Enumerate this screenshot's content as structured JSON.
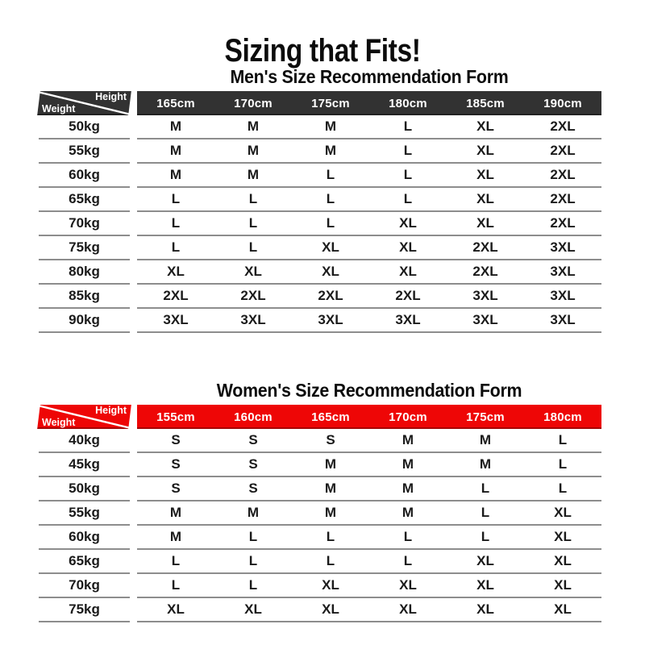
{
  "page_title": "Sizing that Fits!",
  "colors": {
    "men_header": "#323232",
    "women_header": "#ee0606",
    "separator": "#8d8d8d",
    "header_text": "#ffffff",
    "body_text": "#1a1a1a",
    "background": "#ffffff"
  },
  "chart_data": [
    {
      "type": "table",
      "title": "Men's Size Recommendation Form",
      "header_color": "#323232",
      "corner": {
        "top": "Height",
        "bottom": "Weight"
      },
      "columns": [
        "165cm",
        "170cm",
        "175cm",
        "180cm",
        "185cm",
        "190cm"
      ],
      "rows": [
        {
          "weight": "50kg",
          "sizes": [
            "M",
            "M",
            "M",
            "L",
            "XL",
            "2XL"
          ]
        },
        {
          "weight": "55kg",
          "sizes": [
            "M",
            "M",
            "M",
            "L",
            "XL",
            "2XL"
          ]
        },
        {
          "weight": "60kg",
          "sizes": [
            "M",
            "M",
            "L",
            "L",
            "XL",
            "2XL"
          ]
        },
        {
          "weight": "65kg",
          "sizes": [
            "L",
            "L",
            "L",
            "L",
            "XL",
            "2XL"
          ]
        },
        {
          "weight": "70kg",
          "sizes": [
            "L",
            "L",
            "L",
            "XL",
            "XL",
            "2XL"
          ]
        },
        {
          "weight": "75kg",
          "sizes": [
            "L",
            "L",
            "XL",
            "XL",
            "2XL",
            "3XL"
          ]
        },
        {
          "weight": "80kg",
          "sizes": [
            "XL",
            "XL",
            "XL",
            "XL",
            "2XL",
            "3XL"
          ]
        },
        {
          "weight": "85kg",
          "sizes": [
            "2XL",
            "2XL",
            "2XL",
            "2XL",
            "3XL",
            "3XL"
          ]
        },
        {
          "weight": "90kg",
          "sizes": [
            "3XL",
            "3XL",
            "3XL",
            "3XL",
            "3XL",
            "3XL"
          ]
        }
      ]
    },
    {
      "type": "table",
      "title": "Women's Size Recommendation Form",
      "header_color": "#ee0606",
      "corner": {
        "top": "Height",
        "bottom": "Weight"
      },
      "columns": [
        "155cm",
        "160cm",
        "165cm",
        "170cm",
        "175cm",
        "180cm"
      ],
      "rows": [
        {
          "weight": "40kg",
          "sizes": [
            "S",
            "S",
            "S",
            "M",
            "M",
            "L"
          ]
        },
        {
          "weight": "45kg",
          "sizes": [
            "S",
            "S",
            "M",
            "M",
            "M",
            "L"
          ]
        },
        {
          "weight": "50kg",
          "sizes": [
            "S",
            "S",
            "M",
            "M",
            "L",
            "L"
          ]
        },
        {
          "weight": "55kg",
          "sizes": [
            "M",
            "M",
            "M",
            "M",
            "L",
            "XL"
          ]
        },
        {
          "weight": "60kg",
          "sizes": [
            "M",
            "L",
            "L",
            "L",
            "L",
            "XL"
          ]
        },
        {
          "weight": "65kg",
          "sizes": [
            "L",
            "L",
            "L",
            "L",
            "XL",
            "XL"
          ]
        },
        {
          "weight": "70kg",
          "sizes": [
            "L",
            "L",
            "XL",
            "XL",
            "XL",
            "XL"
          ]
        },
        {
          "weight": "75kg",
          "sizes": [
            "XL",
            "XL",
            "XL",
            "XL",
            "XL",
            "XL"
          ]
        }
      ]
    }
  ]
}
